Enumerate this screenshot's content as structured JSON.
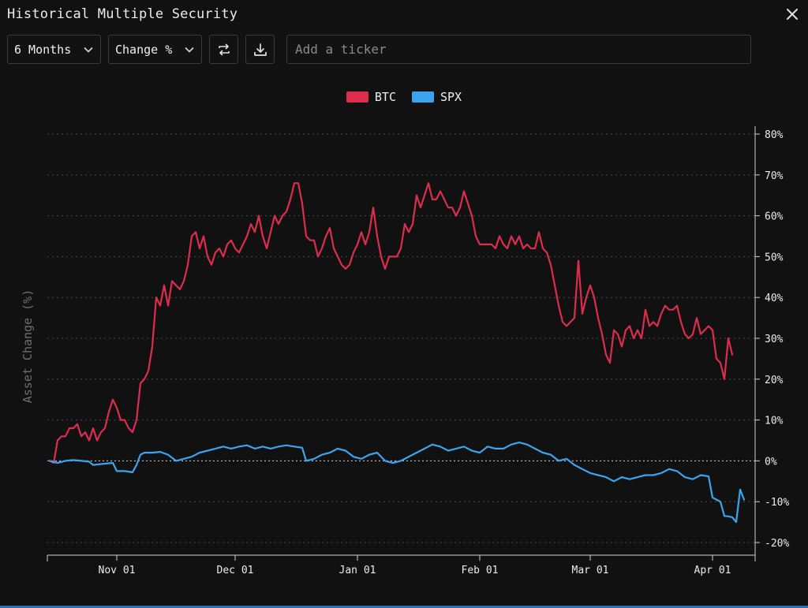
{
  "window": {
    "title": "Historical Multiple Security",
    "close_icon": "close-icon"
  },
  "toolbar": {
    "period_label": "6 Months",
    "metric_label": "Change %",
    "swap_icon": "swap-icon",
    "download_icon": "download-icon",
    "ticker_placeholder": "Add a ticker"
  },
  "colors": {
    "btc": "#dc2d4c",
    "spx": "#3ba4f0",
    "grid": "#4a4a4e",
    "axis": "#d0d0d0"
  },
  "chart_data": {
    "type": "line",
    "title": "",
    "xlabel": "",
    "ylabel": "Asset Change (%)",
    "ylim": [
      -20,
      80
    ],
    "xlim": [
      0,
      175
    ],
    "yticks": [
      80,
      70,
      60,
      50,
      40,
      30,
      20,
      10,
      0,
      -10,
      -20
    ],
    "ytick_labels": [
      "80%",
      "70%",
      "60%",
      "50%",
      "40%",
      "30%",
      "20%",
      "10%",
      "0%",
      "-10%",
      "-20%"
    ],
    "xticks": [
      {
        "day": 17,
        "label": "Nov 01"
      },
      {
        "day": 47,
        "label": "Dec 01"
      },
      {
        "day": 78,
        "label": "Jan 01"
      },
      {
        "day": 109,
        "label": "Feb 01"
      },
      {
        "day": 137,
        "label": "Mar 01"
      },
      {
        "day": 168,
        "label": "Apr 01"
      }
    ],
    "grid": true,
    "legend": "top-center",
    "series": [
      {
        "name": "BTC",
        "points": [
          [
            0,
            0
          ],
          [
            1,
            -0.5
          ],
          [
            2,
            5
          ],
          [
            3,
            6
          ],
          [
            4,
            6
          ],
          [
            5,
            8
          ],
          [
            6,
            8
          ],
          [
            7,
            9
          ],
          [
            8,
            6
          ],
          [
            9,
            7
          ],
          [
            10,
            5
          ],
          [
            11,
            8
          ],
          [
            12,
            5
          ],
          [
            13,
            7
          ],
          [
            14,
            8
          ],
          [
            15,
            12
          ],
          [
            16,
            15
          ],
          [
            17,
            13
          ],
          [
            18,
            10
          ],
          [
            19,
            10
          ],
          [
            20,
            8
          ],
          [
            21,
            7
          ],
          [
            22,
            10
          ],
          [
            23,
            19
          ],
          [
            24,
            20
          ],
          [
            25,
            22
          ],
          [
            26,
            28
          ],
          [
            27,
            40
          ],
          [
            28,
            38
          ],
          [
            29,
            43
          ],
          [
            30,
            38
          ],
          [
            31,
            44
          ],
          [
            32,
            43
          ],
          [
            33,
            42
          ],
          [
            34,
            44
          ],
          [
            35,
            48
          ],
          [
            36,
            55
          ],
          [
            37,
            56
          ],
          [
            38,
            52
          ],
          [
            39,
            55
          ],
          [
            40,
            50
          ],
          [
            41,
            48
          ],
          [
            42,
            51
          ],
          [
            43,
            52
          ],
          [
            44,
            50
          ],
          [
            45,
            53
          ],
          [
            46,
            54
          ],
          [
            47,
            52
          ],
          [
            48,
            51
          ],
          [
            49,
            53
          ],
          [
            50,
            55
          ],
          [
            51,
            58
          ],
          [
            52,
            56
          ],
          [
            53,
            60
          ],
          [
            54,
            55
          ],
          [
            55,
            52
          ],
          [
            56,
            56
          ],
          [
            57,
            60
          ],
          [
            58,
            58
          ],
          [
            59,
            60
          ],
          [
            60,
            61
          ],
          [
            61,
            64
          ],
          [
            62,
            68
          ],
          [
            63,
            68
          ],
          [
            64,
            63
          ],
          [
            65,
            55
          ],
          [
            66,
            54
          ],
          [
            67,
            54
          ],
          [
            68,
            50
          ],
          [
            69,
            52
          ],
          [
            70,
            55
          ],
          [
            71,
            57
          ],
          [
            72,
            52
          ],
          [
            73,
            50
          ],
          [
            74,
            48
          ],
          [
            75,
            47
          ],
          [
            76,
            48
          ],
          [
            77,
            51
          ],
          [
            78,
            53
          ],
          [
            79,
            56
          ],
          [
            80,
            53
          ],
          [
            81,
            56
          ],
          [
            82,
            62
          ],
          [
            83,
            55
          ],
          [
            84,
            50
          ],
          [
            85,
            47
          ],
          [
            86,
            50
          ],
          [
            87,
            50
          ],
          [
            88,
            50
          ],
          [
            89,
            52
          ],
          [
            90,
            58
          ],
          [
            91,
            56
          ],
          [
            92,
            58
          ],
          [
            93,
            65
          ],
          [
            94,
            62
          ],
          [
            95,
            65
          ],
          [
            96,
            68
          ],
          [
            97,
            64
          ],
          [
            98,
            64
          ],
          [
            99,
            66
          ],
          [
            100,
            64
          ],
          [
            101,
            62
          ],
          [
            102,
            62
          ],
          [
            103,
            60
          ],
          [
            104,
            62
          ],
          [
            105,
            66
          ],
          [
            106,
            63
          ],
          [
            107,
            60
          ],
          [
            108,
            55
          ],
          [
            109,
            53
          ],
          [
            110,
            53
          ],
          [
            111,
            53
          ],
          [
            112,
            53
          ],
          [
            113,
            52
          ],
          [
            114,
            55
          ],
          [
            115,
            53
          ],
          [
            116,
            52
          ],
          [
            117,
            55
          ],
          [
            118,
            53
          ],
          [
            119,
            55
          ],
          [
            120,
            52
          ],
          [
            121,
            53
          ],
          [
            122,
            52
          ],
          [
            123,
            52
          ],
          [
            124,
            56
          ],
          [
            125,
            52
          ],
          [
            126,
            51
          ],
          [
            127,
            48
          ],
          [
            128,
            43
          ],
          [
            129,
            38
          ],
          [
            130,
            34
          ],
          [
            131,
            33
          ],
          [
            132,
            34
          ],
          [
            133,
            35
          ],
          [
            134,
            49
          ],
          [
            135,
            36
          ],
          [
            136,
            40
          ],
          [
            137,
            43
          ],
          [
            138,
            40
          ],
          [
            139,
            35
          ],
          [
            140,
            31
          ],
          [
            141,
            26
          ],
          [
            142,
            24
          ],
          [
            143,
            32
          ],
          [
            144,
            31
          ],
          [
            145,
            28
          ],
          [
            146,
            32
          ],
          [
            147,
            33
          ],
          [
            148,
            30
          ],
          [
            149,
            32
          ],
          [
            150,
            30
          ],
          [
            151,
            37
          ],
          [
            152,
            33
          ],
          [
            153,
            34
          ],
          [
            154,
            33
          ],
          [
            155,
            36
          ],
          [
            156,
            38
          ],
          [
            157,
            37
          ],
          [
            158,
            37
          ],
          [
            159,
            38
          ],
          [
            160,
            34
          ],
          [
            161,
            31
          ],
          [
            162,
            30
          ],
          [
            163,
            31
          ],
          [
            164,
            35
          ],
          [
            165,
            31
          ],
          [
            166,
            32
          ],
          [
            167,
            33
          ],
          [
            168,
            32
          ],
          [
            169,
            25
          ],
          [
            170,
            24
          ],
          [
            171,
            20
          ],
          [
            172,
            30
          ],
          [
            173,
            26
          ]
        ]
      },
      {
        "name": "SPX",
        "points": [
          [
            0,
            0
          ],
          [
            2,
            -0.5
          ],
          [
            4,
            0
          ],
          [
            6,
            0.2
          ],
          [
            8,
            0
          ],
          [
            10,
            -0.2
          ],
          [
            11,
            -1
          ],
          [
            13,
            -0.8
          ],
          [
            15,
            -0.6
          ],
          [
            16,
            -0.5
          ],
          [
            17,
            -2.5
          ],
          [
            19,
            -2.5
          ],
          [
            21,
            -2.8
          ],
          [
            22,
            -1
          ],
          [
            23,
            1.5
          ],
          [
            24,
            2
          ],
          [
            26,
            2
          ],
          [
            28,
            2.2
          ],
          [
            30,
            1.5
          ],
          [
            32,
            0
          ],
          [
            34,
            0.5
          ],
          [
            36,
            1
          ],
          [
            38,
            2
          ],
          [
            40,
            2.5
          ],
          [
            42,
            3
          ],
          [
            44,
            3.5
          ],
          [
            46,
            3
          ],
          [
            48,
            3.5
          ],
          [
            50,
            3.8
          ],
          [
            52,
            3
          ],
          [
            54,
            3.5
          ],
          [
            56,
            3
          ],
          [
            58,
            3.5
          ],
          [
            60,
            3.8
          ],
          [
            62,
            3.5
          ],
          [
            64,
            3.2
          ],
          [
            65,
            0
          ],
          [
            67,
            0.5
          ],
          [
            69,
            1.5
          ],
          [
            71,
            2
          ],
          [
            73,
            3
          ],
          [
            75,
            2.5
          ],
          [
            77,
            1
          ],
          [
            79,
            0.5
          ],
          [
            81,
            1.5
          ],
          [
            83,
            2
          ],
          [
            85,
            0
          ],
          [
            87,
            -0.5
          ],
          [
            89,
            0
          ],
          [
            91,
            1
          ],
          [
            93,
            2
          ],
          [
            95,
            3
          ],
          [
            97,
            4
          ],
          [
            99,
            3.5
          ],
          [
            101,
            2.5
          ],
          [
            103,
            3
          ],
          [
            105,
            3.5
          ],
          [
            107,
            2.5
          ],
          [
            109,
            2
          ],
          [
            111,
            3.5
          ],
          [
            113,
            3
          ],
          [
            115,
            3
          ],
          [
            117,
            4
          ],
          [
            119,
            4.5
          ],
          [
            121,
            4
          ],
          [
            123,
            3
          ],
          [
            125,
            2
          ],
          [
            127,
            1.5
          ],
          [
            129,
            0
          ],
          [
            131,
            0.5
          ],
          [
            133,
            -1
          ],
          [
            135,
            -2
          ],
          [
            137,
            -3
          ],
          [
            139,
            -3.5
          ],
          [
            141,
            -4
          ],
          [
            143,
            -5
          ],
          [
            145,
            -4
          ],
          [
            147,
            -4.5
          ],
          [
            149,
            -4
          ],
          [
            151,
            -3.5
          ],
          [
            153,
            -3.5
          ],
          [
            155,
            -3
          ],
          [
            157,
            -2
          ],
          [
            159,
            -2.5
          ],
          [
            161,
            -4
          ],
          [
            163,
            -4.5
          ],
          [
            165,
            -3.5
          ],
          [
            167,
            -3.8
          ],
          [
            168,
            -9
          ],
          [
            170,
            -10
          ],
          [
            171,
            -13.5
          ],
          [
            172,
            -13.6
          ],
          [
            173,
            -13.8
          ],
          [
            174,
            -15
          ],
          [
            175,
            -7
          ],
          [
            176,
            -9.5
          ]
        ]
      }
    ]
  }
}
